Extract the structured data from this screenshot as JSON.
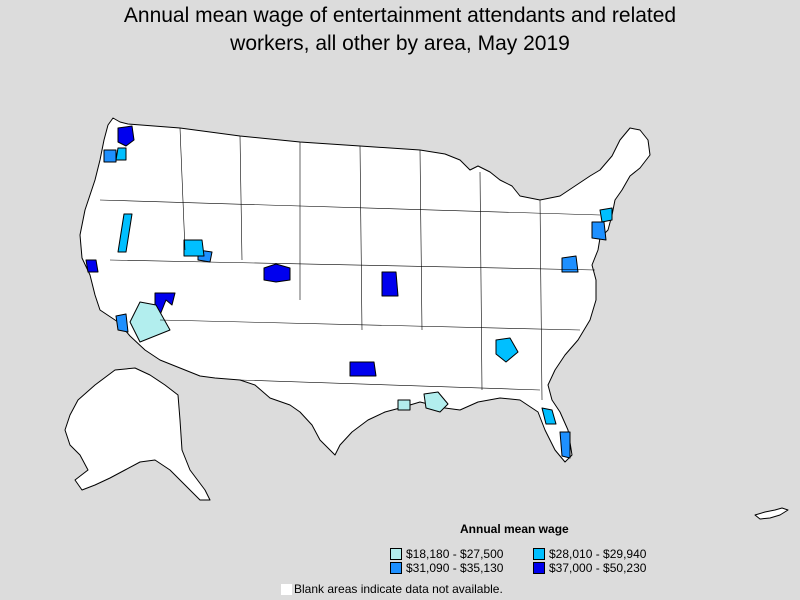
{
  "title_line1": "Annual mean wage of entertainment attendants and related",
  "title_line2": "workers, all other by area, May 2019",
  "legend": {
    "title": "Annual mean wage",
    "items": [
      {
        "label": "$18,180 - $27,500",
        "color": "#b2eeee"
      },
      {
        "label": "$28,010 - $29,940",
        "color": "#00bfff"
      },
      {
        "label": "$31,090 - $35,130",
        "color": "#1e90ff"
      },
      {
        "label": "$37,000 - $50,230",
        "color": "#0000ee"
      }
    ]
  },
  "note": "Blank areas indicate data not available."
}
